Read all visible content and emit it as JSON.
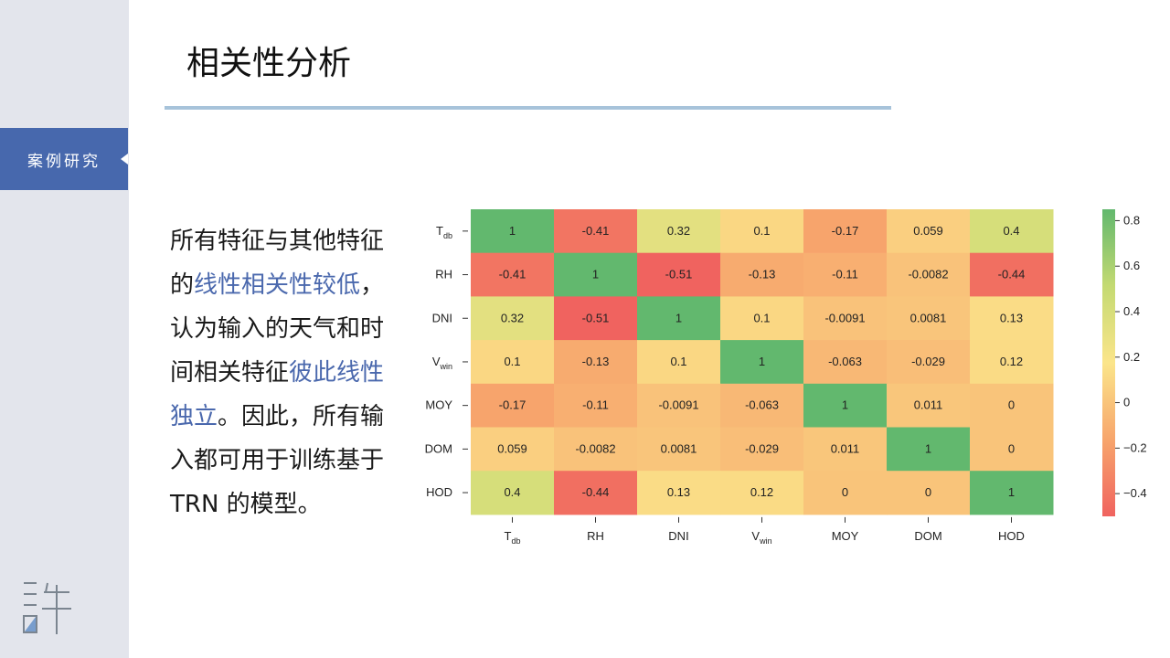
{
  "slide": {
    "title": "相关性分析",
    "section_tab": "案例研究",
    "logo_char": "許"
  },
  "body": {
    "p1": "所有特征与其他特征的",
    "p1_hl": "线性相关性较低",
    "p2": "，认为输入的天气和时间相关特征",
    "p2_hl": "彼此线性独立",
    "p3": "。因此，所有输入都可用于训练基于TRN 的模型。"
  },
  "colors": {
    "sidebar_bg": "#e3e5ec",
    "accent": "#4768ad",
    "highlight_text": "#4a68ad",
    "rule": "#a7c3da"
  },
  "chart_data": {
    "type": "heatmap",
    "row_labels": [
      {
        "base": "T",
        "sub": "db"
      },
      {
        "base": "RH",
        "sub": ""
      },
      {
        "base": "DNI",
        "sub": ""
      },
      {
        "base": "V",
        "sub": "win"
      },
      {
        "base": "MOY",
        "sub": ""
      },
      {
        "base": "DOM",
        "sub": ""
      },
      {
        "base": "HOD",
        "sub": ""
      }
    ],
    "col_labels": [
      {
        "base": "T",
        "sub": "db"
      },
      {
        "base": "RH",
        "sub": ""
      },
      {
        "base": "DNI",
        "sub": ""
      },
      {
        "base": "V",
        "sub": "win"
      },
      {
        "base": "MOY",
        "sub": ""
      },
      {
        "base": "DOM",
        "sub": ""
      },
      {
        "base": "HOD",
        "sub": ""
      }
    ],
    "matrix": [
      [
        "1",
        "-0.41",
        "0.32",
        "0.1",
        "-0.17",
        "0.059",
        "0.4"
      ],
      [
        "-0.41",
        "1",
        "-0.51",
        "-0.13",
        "-0.11",
        "-0.0082",
        "-0.44"
      ],
      [
        "0.32",
        "-0.51",
        "1",
        "0.1",
        "-0.0091",
        "0.0081",
        "0.13"
      ],
      [
        "0.1",
        "-0.13",
        "0.1",
        "1",
        "-0.063",
        "-0.029",
        "0.12"
      ],
      [
        "-0.17",
        "-0.11",
        "-0.0091",
        "-0.063",
        "1",
        "0.011",
        "0"
      ],
      [
        "0.059",
        "-0.0082",
        "0.0081",
        "-0.029",
        "0.011",
        "1",
        "0"
      ],
      [
        "0.4",
        "-0.44",
        "0.13",
        "0.12",
        "0",
        "0",
        "1"
      ]
    ],
    "colorbar": {
      "vmin": -0.5,
      "vmax": 0.85,
      "ticks": [
        "0.8",
        "0.6",
        "0.4",
        "0.2",
        "0",
        "−0.2",
        "−0.4"
      ],
      "tick_values": [
        0.8,
        0.6,
        0.4,
        0.2,
        0,
        -0.2,
        -0.4
      ],
      "colormap": "RdYlGn",
      "stops": [
        "#f0635f",
        "#f7a56c",
        "#fbe58a",
        "#c4da72",
        "#62b86e"
      ]
    },
    "annotations": "cell values shown",
    "grid": false
  }
}
